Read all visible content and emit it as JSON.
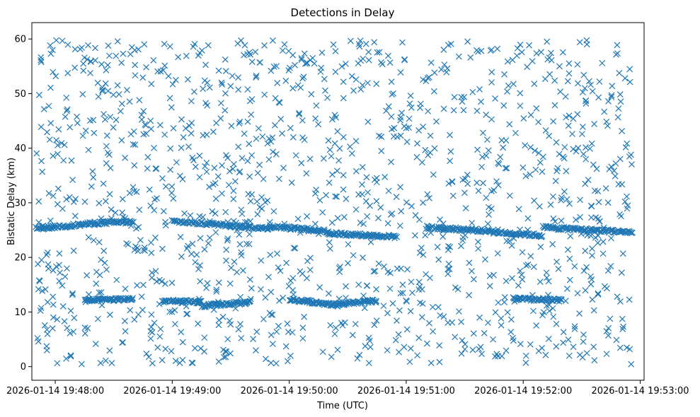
{
  "chart_data": {
    "type": "scatter",
    "title": "Detections in Delay",
    "xlabel": "Time (UTC)",
    "ylabel": "Bistatic Delay (km)",
    "xlim": [
      "2026-01-14 19:47:48",
      "2026-01-14 19:53:02"
    ],
    "ylim": [
      -2.5,
      63
    ],
    "x_ticks": [
      "2026-01-14 19:48:00",
      "2026-01-14 19:49:00",
      "2026-01-14 19:50:00",
      "2026-01-14 19:51:00",
      "2026-01-14 19:52:00",
      "2026-01-14 19:53:00"
    ],
    "y_ticks": [
      0,
      10,
      20,
      30,
      40,
      50,
      60
    ],
    "marker": "x",
    "color": "#1f77b4",
    "grid": false,
    "track_points": [
      {
        "x": "2026-01-14 19:47:50",
        "y": 25.6
      },
      {
        "x": "2026-01-14 19:48:05",
        "y": 26.0
      },
      {
        "x": "2026-01-14 19:48:25",
        "y": 26.4
      },
      {
        "x": "2026-01-14 19:48:45",
        "y": 26.6
      },
      {
        "x": "2026-01-14 19:49:05",
        "y": 26.3
      },
      {
        "x": "2026-01-14 19:49:25",
        "y": 25.9
      },
      {
        "x": "2026-01-14 19:49:45",
        "y": 25.5
      },
      {
        "x": "2026-01-14 19:50:05",
        "y": 25.1
      },
      {
        "x": "2026-01-14 19:50:25",
        "y": 24.6
      },
      {
        "x": "2026-01-14 19:50:45",
        "y": 24.1
      },
      {
        "x": "2026-01-14 19:51:10",
        "y": 25.3
      },
      {
        "x": "2026-01-14 19:51:30",
        "y": 24.9
      },
      {
        "x": "2026-01-14 19:51:50",
        "y": 24.4
      },
      {
        "x": "2026-01-14 19:52:10",
        "y": 24.0
      },
      {
        "x": "2026-01-14 19:52:30",
        "y": 25.2
      },
      {
        "x": "2026-01-14 19:52:50",
        "y": 24.7
      },
      {
        "x": "2026-01-14 19:48:10",
        "y": 12.2
      },
      {
        "x": "2026-01-14 19:48:25",
        "y": 12.4
      },
      {
        "x": "2026-01-14 19:49:10",
        "y": 11.0
      },
      {
        "x": "2026-01-14 19:49:30",
        "y": 11.6
      },
      {
        "x": "2026-01-14 19:50:05",
        "y": 12.0
      },
      {
        "x": "2026-01-14 19:50:25",
        "y": 11.4
      },
      {
        "x": "2026-01-14 19:50:40",
        "y": 11.9
      },
      {
        "x": "2026-01-14 19:52:00",
        "y": 12.3
      },
      {
        "x": "2026-01-14 19:52:15",
        "y": 12.1
      }
    ]
  }
}
